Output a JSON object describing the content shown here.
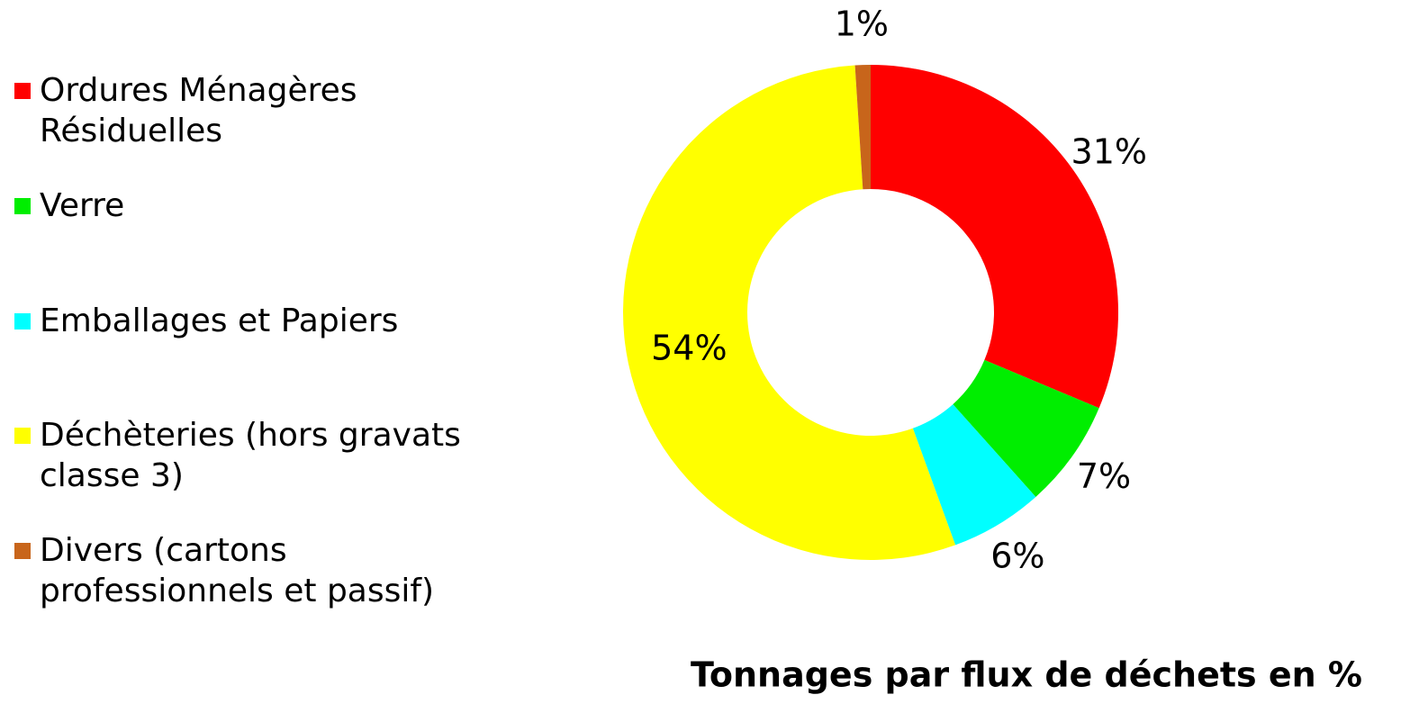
{
  "chart_data": {
    "type": "donut",
    "title": "Tonnages par flux de déchets en %",
    "categories": [
      "Ordures Ménagères Résiduelles",
      "Verre",
      "Emballages et Papiers",
      "Déchèteries (hors gravats classe 3)",
      "Divers (cartons professionnels et passif)"
    ],
    "values": [
      31,
      7,
      6,
      54,
      1
    ],
    "value_labels": [
      "31%",
      "7%",
      "6%",
      "54%",
      "1%"
    ],
    "colors": [
      "#ff0000",
      "#00ee00",
      "#00ffff",
      "#ffff00",
      "#c8651b"
    ],
    "legend": "left"
  }
}
